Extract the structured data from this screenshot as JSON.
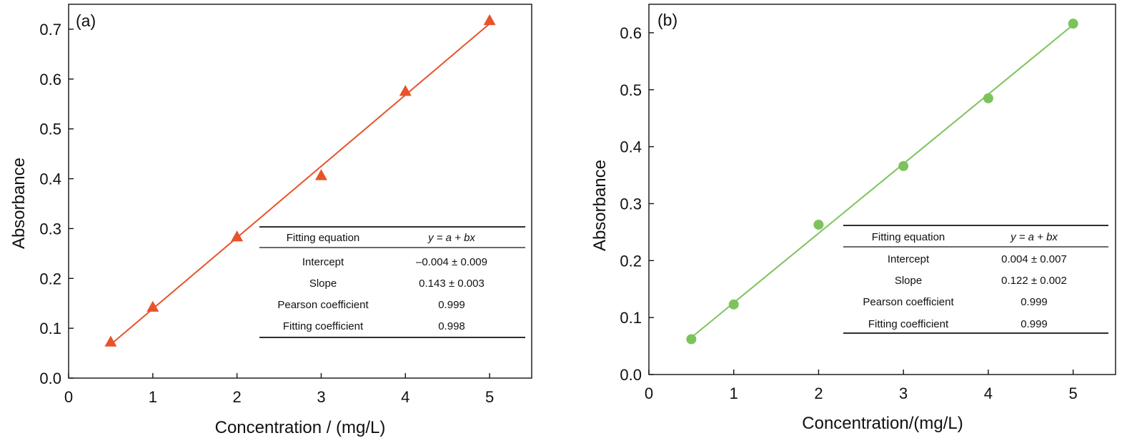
{
  "chart_data": [
    {
      "type": "scatter",
      "panel_label": "(a)",
      "xlabel": "Concentration / (mg/L)",
      "ylabel": "Absorbance",
      "xlim": [
        0,
        5.5
      ],
      "ylim": [
        0,
        0.75
      ],
      "xticks": [
        "0",
        "1",
        "2",
        "3",
        "4",
        "5"
      ],
      "yticks": [
        "0.0",
        "0.1",
        "0.2",
        "0.3",
        "0.4",
        "0.5",
        "0.6",
        "0.7"
      ],
      "marker": "triangle",
      "color": "#e8532a",
      "points": {
        "x": [
          0.5,
          1,
          2,
          3,
          4,
          5
        ],
        "y": [
          0.073,
          0.143,
          0.284,
          0.407,
          0.576,
          0.718
        ]
      },
      "fit": {
        "intercept": -0.004,
        "slope": 0.143,
        "x_range": [
          0.5,
          5
        ]
      },
      "table": {
        "header": [
          "Fitting equation",
          "y = a + bx"
        ],
        "rows": [
          [
            "Intercept",
            "–0.004 ± 0.009"
          ],
          [
            "Slope",
            "0.143 ± 0.003"
          ],
          [
            "Pearson coefficient",
            "0.999"
          ],
          [
            "Fitting coefficient",
            "0.998"
          ]
        ]
      }
    },
    {
      "type": "scatter",
      "panel_label": "(b)",
      "xlabel": "Concentration/(mg/L)",
      "ylabel": "Absorbance",
      "xlim": [
        0,
        5.5
      ],
      "ylim": [
        0,
        0.65
      ],
      "xticks": [
        "0",
        "1",
        "2",
        "3",
        "4",
        "5"
      ],
      "yticks": [
        "0.0",
        "0.1",
        "0.2",
        "0.3",
        "0.4",
        "0.5",
        "0.6"
      ],
      "marker": "circle",
      "color": "#7dc35b",
      "points": {
        "x": [
          0.5,
          1,
          2,
          3,
          4,
          5
        ],
        "y": [
          0.062,
          0.123,
          0.263,
          0.366,
          0.485,
          0.616
        ]
      },
      "fit": {
        "intercept": 0.004,
        "slope": 0.122,
        "x_range": [
          0.5,
          5
        ]
      },
      "table": {
        "header": [
          "Fitting equation",
          "y = a + bx"
        ],
        "rows": [
          [
            "Intercept",
            "0.004 ± 0.007"
          ],
          [
            "Slope",
            "0.122 ± 0.002"
          ],
          [
            "Pearson coefficient",
            "0.999"
          ],
          [
            "Fitting coefficient",
            "0.999"
          ]
        ]
      }
    }
  ]
}
